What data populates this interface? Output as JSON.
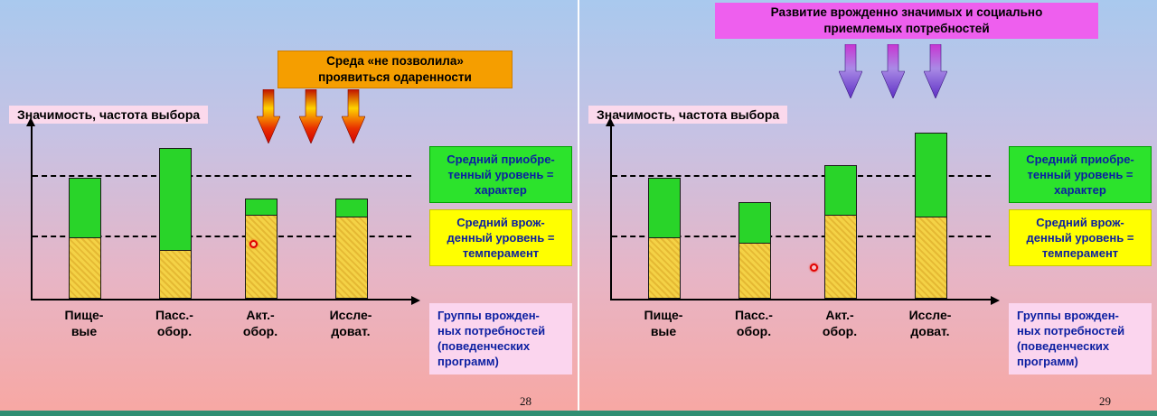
{
  "colors": {
    "background_top": "#a9c9ee",
    "background_bottom": "#f8a7a2",
    "bottom_strip": "#2f8e72",
    "banner_orange": "#f59e00",
    "banner_pink": "#ee5fee",
    "legend_green_bg": "#2ce32c",
    "legend_yellow_bg": "#ffff00",
    "legend_pink_bg": "#fbd5ee",
    "bar_innate_yellow": "#f4d246",
    "bar_acquired_green": "#29d429",
    "legend_text_blue": "#0b1fa1",
    "arrow_red_gradient": [
      "#c01000",
      "#ffd300",
      "#d40000"
    ],
    "arrow_purple_gradient": [
      "#c835d2",
      "#a98ae6",
      "#5d2fc4"
    ],
    "laser_dot": "#e00000"
  },
  "slides": [
    {
      "banner_text": "Среда «не позволила»\nпроявиться одаренности",
      "chart_title": "Значимость, частота выбора",
      "boxes": {
        "acquired": "Средний приобре-\nтенный уровень =\nхарактер",
        "innate": "Средний врож-\nденный уровень =\nтемперамент",
        "groups": "Группы врожден-\nных потребностей\n(поведенческих\nпрограмм)"
      },
      "page_number": "28"
    },
    {
      "banner_text": "Развитие врожденно значимых и социально\nприемлемых потребностей",
      "chart_title": "Значимость, частота выбора",
      "boxes": {
        "acquired": "Средний приобре-\nтенный уровень =\nхарактер",
        "innate": "Средний врож-\nденный уровень =\nтемперамент",
        "groups": "Группы врожден-\nных потребностей\n(поведенческих\nпрограмм)"
      },
      "page_number": "29"
    }
  ],
  "chart_data": [
    {
      "type": "bar",
      "stacked": true,
      "title": "Значимость, частота выбора",
      "ylabel": "Значимость, частота выбора",
      "xlabel": "Группы врожденных потребностей (поведенческих программ)",
      "categories": [
        "Пище-\nвые",
        "Пасс.-\nобор.",
        "Акт.-\nобор.",
        "Иссле-\nдоват."
      ],
      "series": [
        {
          "name": "Средний врожденный уровень = темперамент",
          "color": "#f4d246",
          "values": [
            35,
            28,
            48,
            47
          ]
        },
        {
          "name": "Средний приобретенный уровень = характер",
          "color": "#29d429",
          "values": [
            35,
            59,
            10,
            11
          ]
        }
      ],
      "reference_lines": [
        {
          "value": 35,
          "label": "Средний врожденный уровень = темперамент"
        },
        {
          "value": 70,
          "label": "Средний приобретенный уровень = характер"
        }
      ],
      "ylim": [
        0,
        100
      ],
      "grid": false,
      "legend_position": "right"
    },
    {
      "type": "bar",
      "stacked": true,
      "title": "Значимость, частота выбора",
      "ylabel": "Значимость, частота выбора",
      "xlabel": "Группы врожденных потребностей (поведенческих программ)",
      "categories": [
        "Пище-\nвые",
        "Пасс.-\nобор.",
        "Акт.-\nобор.",
        "Иссле-\nдоват."
      ],
      "series": [
        {
          "name": "Средний врожденный уровень = темперамент",
          "color": "#f4d246",
          "values": [
            35,
            32,
            48,
            47
          ]
        },
        {
          "name": "Средний приобретенный уровень = характер",
          "color": "#29d429",
          "values": [
            35,
            24,
            29,
            49
          ]
        }
      ],
      "reference_lines": [
        {
          "value": 35,
          "label": "Средний врожденный уровень = темперамент"
        },
        {
          "value": 70,
          "label": "Средний приобретенный уровень = характер"
        }
      ],
      "ylim": [
        0,
        100
      ],
      "grid": false,
      "legend_position": "right"
    }
  ]
}
